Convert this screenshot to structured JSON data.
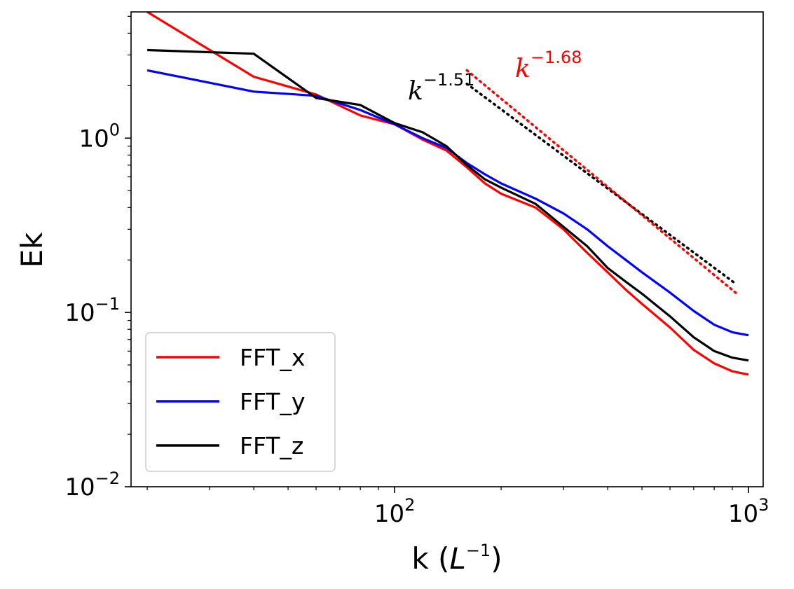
{
  "chart_data": {
    "type": "line",
    "xscale": "log",
    "yscale": "log",
    "xlabel_text": "k (",
    "xlabel_sym": "L",
    "xlabel_sup": "−1",
    "xlabel_close": ")",
    "ylabel": "Ek",
    "xlim": [
      18,
      1100
    ],
    "ylim": [
      0.01,
      5.3
    ],
    "xticks": [
      {
        "value": 100,
        "base": "10",
        "exp": "2"
      },
      {
        "value": 1000,
        "base": "10",
        "exp": "3"
      }
    ],
    "yticks": [
      {
        "value": 0.01,
        "base": "10",
        "exp": "−2"
      },
      {
        "value": 0.1,
        "base": "10",
        "exp": "−1"
      },
      {
        "value": 1,
        "base": "10",
        "exp": "0"
      }
    ],
    "legend_position": "lower-left",
    "series": [
      {
        "name": "FFT_x",
        "color": "#ff0000",
        "x": [
          20,
          40,
          60,
          80,
          100,
          120,
          140,
          160,
          180,
          200,
          250,
          300,
          350,
          400,
          450,
          500,
          600,
          700,
          800,
          900,
          1000
        ],
        "y": [
          5.3,
          2.25,
          1.78,
          1.35,
          1.2,
          0.98,
          0.85,
          0.68,
          0.55,
          0.48,
          0.4,
          0.3,
          0.22,
          0.17,
          0.135,
          0.112,
          0.082,
          0.061,
          0.051,
          0.046,
          0.044
        ]
      },
      {
        "name": "FFT_y",
        "color": "#0000ff",
        "x": [
          20,
          40,
          60,
          80,
          100,
          120,
          140,
          160,
          180,
          200,
          250,
          300,
          350,
          400,
          450,
          500,
          600,
          700,
          800,
          900,
          1000
        ],
        "y": [
          2.45,
          1.85,
          1.75,
          1.45,
          1.2,
          1.0,
          0.88,
          0.72,
          0.62,
          0.55,
          0.45,
          0.37,
          0.3,
          0.24,
          0.2,
          0.17,
          0.13,
          0.102,
          0.085,
          0.077,
          0.074
        ]
      },
      {
        "name": "FFT_z",
        "color": "#000000",
        "x": [
          20,
          40,
          60,
          80,
          100,
          120,
          140,
          160,
          180,
          200,
          250,
          300,
          350,
          400,
          450,
          500,
          600,
          700,
          800,
          900,
          1000
        ],
        "y": [
          3.2,
          3.05,
          1.7,
          1.55,
          1.22,
          1.08,
          0.9,
          0.7,
          0.58,
          0.52,
          0.42,
          0.31,
          0.24,
          0.18,
          0.15,
          0.128,
          0.095,
          0.072,
          0.06,
          0.055,
          0.053
        ]
      }
    ],
    "fits": [
      {
        "label_base": "k",
        "label_exp": "−1.51",
        "slope": -1.51,
        "color": "#000000",
        "x_start": 160,
        "y_start": 2.05,
        "x_end": 920
      },
      {
        "label_base": "k",
        "label_exp": "−1.68",
        "slope": -1.68,
        "color": "#ff0000",
        "x_start": 160,
        "y_start": 2.45,
        "x_end": 920
      }
    ]
  }
}
